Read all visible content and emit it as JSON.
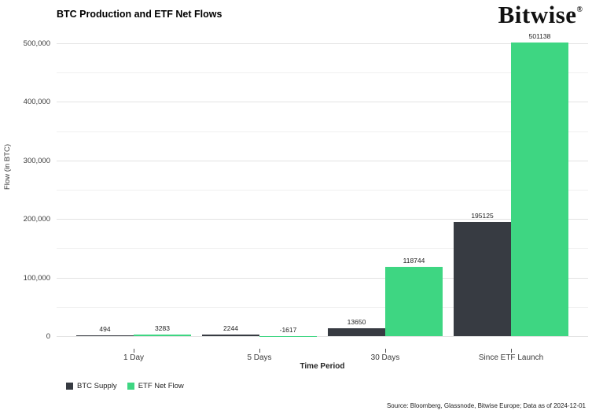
{
  "header": {
    "logo_text": "Bitwise",
    "logo_reg": "®"
  },
  "chart_data": {
    "type": "bar",
    "title": "BTC Production and ETF Net Flows",
    "xlabel": "Time Period",
    "ylabel": "Flow (in BTC)",
    "categories": [
      "1 Day",
      "5 Days",
      "30 Days",
      "Since ETF Launch"
    ],
    "series": [
      {
        "name": "BTC Supply",
        "color": "#373B42",
        "values": [
          494,
          2244,
          13650,
          195125
        ],
        "labels": [
          "494",
          "2244",
          "13650",
          "195125"
        ]
      },
      {
        "name": "ETF Net Flow",
        "color": "#3ED682",
        "values": [
          3283,
          -1617,
          118744,
          501138
        ],
        "labels": [
          "3283",
          "-1617",
          "118744",
          "501138"
        ]
      }
    ],
    "ylim": [
      -27000,
      530000
    ],
    "yticks": [
      0,
      100000,
      200000,
      300000,
      400000,
      500000
    ],
    "ytick_labels": [
      "0",
      "100,000",
      "200,000",
      "300,000",
      "400,000",
      "500,000"
    ],
    "yticks_minor": [
      50000,
      150000,
      250000,
      350000,
      450000
    ],
    "grid": true,
    "legend_position": "bottom-left"
  },
  "footer": {
    "source": "Source: Bloomberg, Glassnode, Bitwise Europe; Data as of 2024-12-01"
  }
}
